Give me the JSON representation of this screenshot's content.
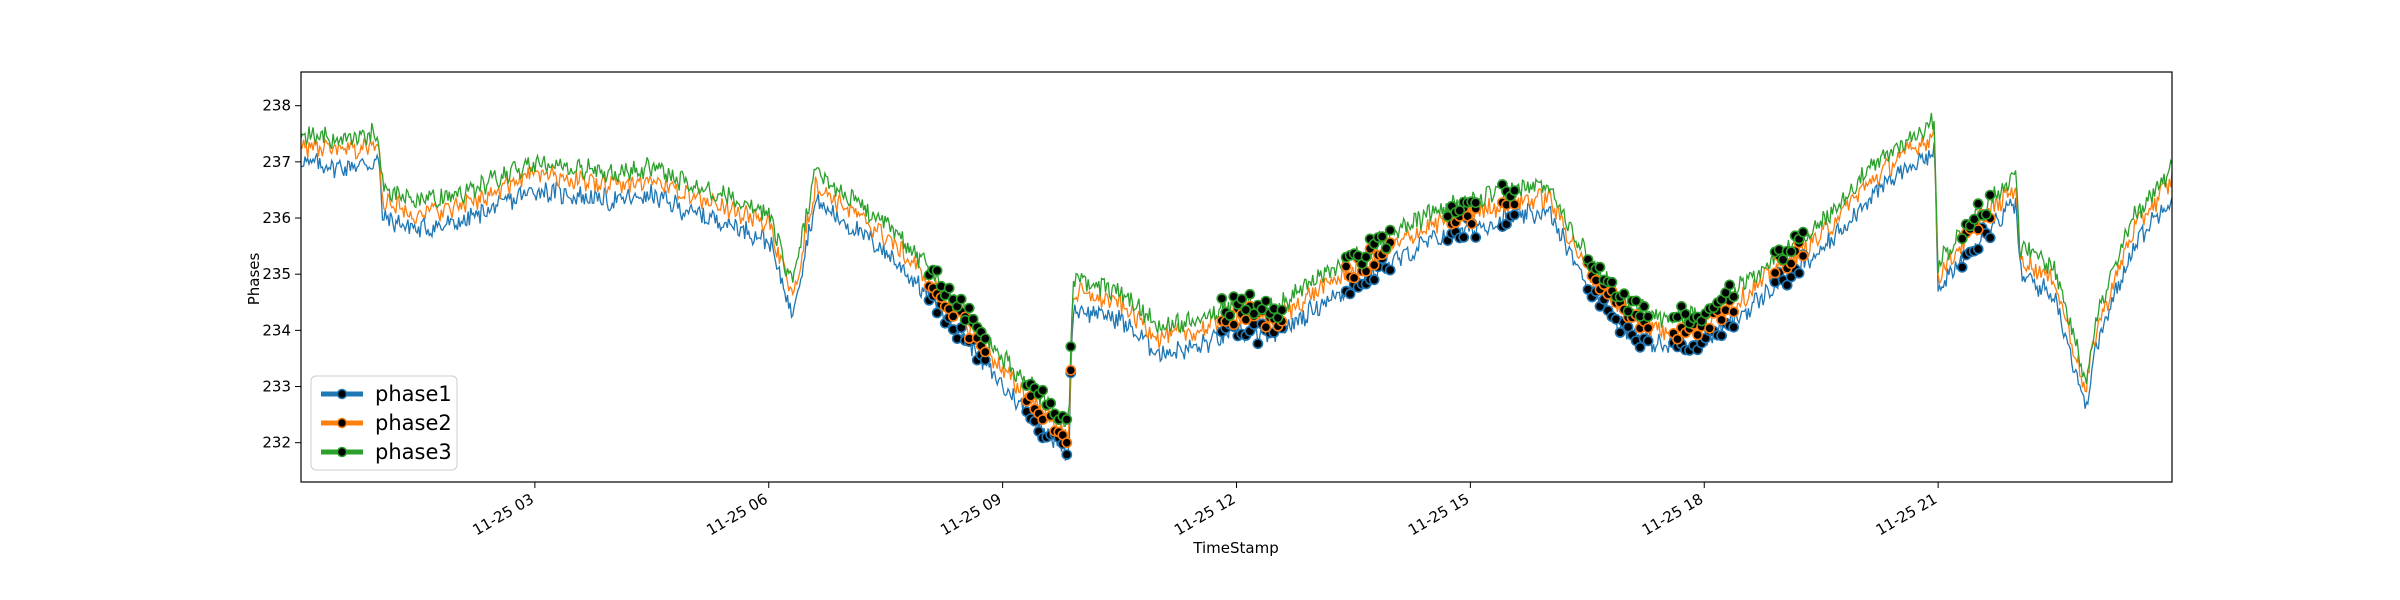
{
  "chart_data": {
    "type": "line",
    "title": "",
    "xlabel": "TimeStamp",
    "ylabel": "Phases",
    "ylim": [
      231.3,
      238.6
    ],
    "xlim_hours": [
      0,
      24
    ],
    "yticks": [
      232,
      233,
      234,
      235,
      236,
      237,
      238
    ],
    "xticks": [
      {
        "hour": 3,
        "label": "11-25 03"
      },
      {
        "hour": 6,
        "label": "11-25 06"
      },
      {
        "hour": 9,
        "label": "11-25 09"
      },
      {
        "hour": 12,
        "label": "11-25 12"
      },
      {
        "hour": 15,
        "label": "11-25 15"
      },
      {
        "hour": 18,
        "label": "11-25 18"
      },
      {
        "hour": 21,
        "label": "11-25 21"
      }
    ],
    "legend_position": "lower-left",
    "grid": false,
    "x_hours": [
      0,
      0.5,
      1,
      1.05,
      1.5,
      2,
      2.5,
      3,
      3.5,
      4,
      4.5,
      5,
      5.5,
      6,
      6.3,
      6.6,
      6.9,
      7.5,
      8,
      8.5,
      9,
      9.5,
      9.85,
      9.9,
      10.5,
      11,
      11.5,
      12,
      12.5,
      13,
      13.5,
      14,
      14.5,
      15,
      15.5,
      16,
      16.5,
      17,
      17.5,
      18,
      18.5,
      19,
      19.5,
      20,
      20.5,
      20.95,
      21,
      21.5,
      22,
      22.05,
      22.5,
      22.9,
      23,
      23.5,
      24
    ],
    "series": [
      {
        "name": "phase1",
        "color": "#1f77b4",
        "offset": 0.0,
        "values": [
          237.0,
          236.9,
          237.0,
          236.0,
          235.8,
          235.9,
          236.2,
          236.5,
          236.4,
          236.3,
          236.4,
          236.1,
          235.9,
          235.6,
          234.3,
          236.3,
          236.0,
          235.4,
          234.7,
          233.9,
          233.0,
          232.3,
          231.8,
          234.4,
          234.2,
          233.6,
          233.7,
          234.0,
          233.9,
          234.4,
          234.8,
          235.2,
          235.6,
          235.8,
          236.0,
          236.1,
          234.8,
          234.0,
          233.7,
          233.8,
          234.3,
          234.9,
          235.4,
          236.2,
          236.8,
          237.2,
          234.7,
          235.6,
          236.3,
          235.0,
          234.6,
          232.6,
          233.6,
          235.5,
          236.4
        ]
      },
      {
        "name": "phase2",
        "color": "#ff7f0e",
        "offset": 0.28,
        "values": [
          237.0,
          236.9,
          237.0,
          236.0,
          235.8,
          235.9,
          236.2,
          236.5,
          236.4,
          236.3,
          236.4,
          236.1,
          235.9,
          235.6,
          234.3,
          236.3,
          236.0,
          235.4,
          234.7,
          233.9,
          233.0,
          232.3,
          231.8,
          234.4,
          234.2,
          233.6,
          233.7,
          234.0,
          233.9,
          234.4,
          234.8,
          235.2,
          235.6,
          235.8,
          236.0,
          236.1,
          234.8,
          234.0,
          233.7,
          233.8,
          234.3,
          234.9,
          235.4,
          236.2,
          236.8,
          237.2,
          234.7,
          235.6,
          236.3,
          235.0,
          234.6,
          232.6,
          233.6,
          235.5,
          236.4
        ]
      },
      {
        "name": "phase3",
        "color": "#2ca02c",
        "offset": 0.5,
        "values": [
          237.0,
          236.9,
          237.0,
          236.0,
          235.8,
          235.9,
          236.2,
          236.5,
          236.4,
          236.3,
          236.4,
          236.1,
          235.9,
          235.6,
          234.3,
          236.3,
          236.0,
          235.4,
          234.7,
          233.9,
          233.0,
          232.3,
          231.8,
          234.4,
          234.2,
          233.6,
          233.7,
          234.0,
          233.9,
          234.4,
          234.8,
          235.2,
          235.6,
          235.8,
          236.0,
          236.1,
          234.8,
          234.0,
          233.7,
          233.8,
          234.3,
          234.9,
          235.4,
          236.2,
          236.8,
          237.2,
          234.7,
          235.6,
          236.3,
          235.0,
          234.6,
          232.6,
          233.6,
          235.5,
          236.4
        ]
      }
    ],
    "marker_ranges_hours": [
      [
        8.05,
        8.8
      ],
      [
        9.3,
        9.9
      ],
      [
        11.8,
        12.6
      ],
      [
        13.4,
        14.0
      ],
      [
        14.7,
        15.1
      ],
      [
        15.4,
        15.6
      ],
      [
        16.5,
        17.3
      ],
      [
        17.6,
        18.4
      ],
      [
        18.9,
        19.3
      ],
      [
        21.3,
        21.7
      ]
    ],
    "marker_color": "#000000"
  }
}
